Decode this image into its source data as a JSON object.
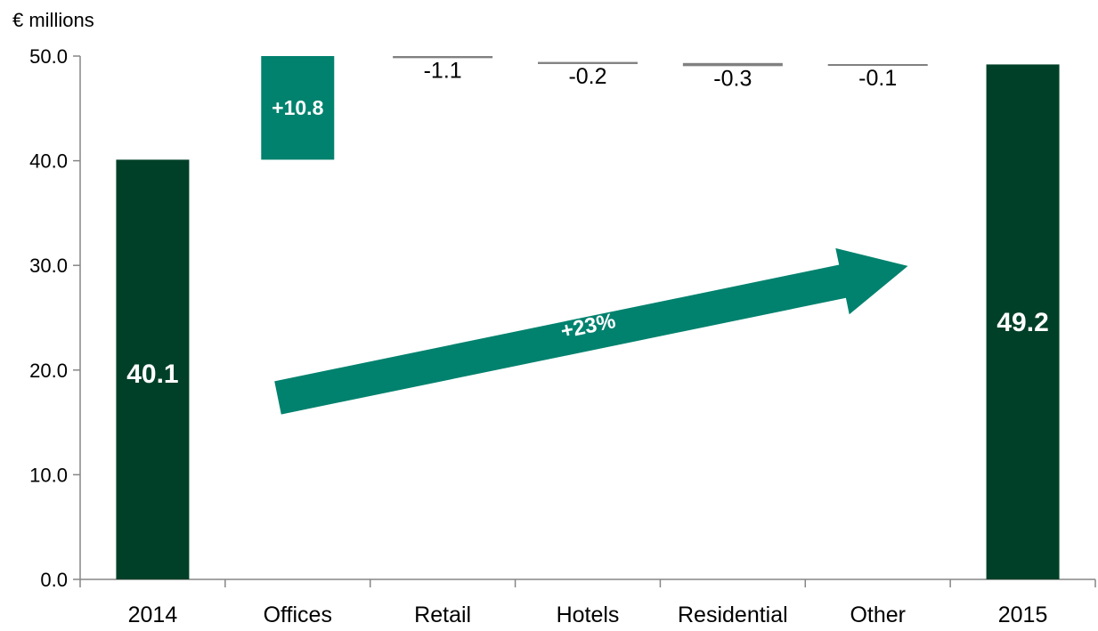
{
  "chart_data": {
    "type": "bar",
    "subtype": "waterfall",
    "unit_label": "€ millions",
    "categories": [
      "2014",
      "Offices",
      "Retail",
      "Hotels",
      "Residential",
      "Other",
      "2015"
    ],
    "bars": [
      {
        "category": "2014",
        "kind": "total",
        "value": 40.1,
        "label": "40.1"
      },
      {
        "category": "Offices",
        "kind": "delta",
        "value": 10.8,
        "label": "+10.8"
      },
      {
        "category": "Retail",
        "kind": "delta",
        "value": -1.1,
        "label": "-1.1"
      },
      {
        "category": "Hotels",
        "kind": "delta",
        "value": -0.2,
        "label": "-0.2"
      },
      {
        "category": "Residential",
        "kind": "delta",
        "value": -0.3,
        "label": "-0.3"
      },
      {
        "category": "Other",
        "kind": "delta",
        "value": -0.1,
        "label": "-0.1"
      },
      {
        "category": "2015",
        "kind": "total",
        "value": 49.2,
        "label": "49.2"
      }
    ],
    "ylim": [
      0,
      50
    ],
    "y_ticks": [
      "0.0",
      "10.0",
      "20.0",
      "30.0",
      "40.0",
      "50.0"
    ],
    "clip_top": true,
    "grid": false,
    "annotation": {
      "label": "+23%",
      "from": "2014",
      "to": "2015"
    },
    "colors": {
      "total": "#004028",
      "increase": "#00826e",
      "decrease": "#808080",
      "arrow": "#00826e"
    }
  }
}
